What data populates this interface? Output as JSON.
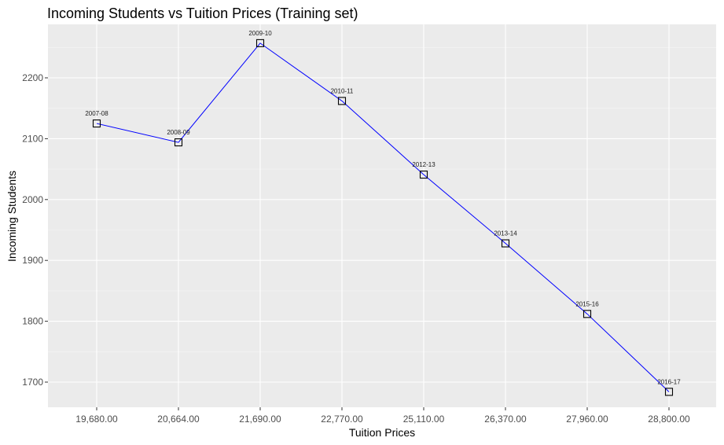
{
  "chart_data": {
    "type": "line",
    "title": "Incoming Students vs Tuition Prices (Training set)",
    "xlabel": "Tuition Prices",
    "ylabel": "Incoming Students",
    "categories": [
      "19,680.00",
      "20,664.00",
      "21,690.00",
      "22,770.00",
      "25,110.00",
      "26,370.00",
      "27,960.00",
      "28,800.00"
    ],
    "x_scale": "discrete",
    "ylim": [
      1650,
      2275
    ],
    "y_ticks": [
      1700,
      1800,
      1900,
      2000,
      2100,
      2200
    ],
    "y_tick_labels": [
      "1700",
      "1800",
      "1900",
      "2000",
      "2100",
      "2200"
    ],
    "grid": true,
    "series": [
      {
        "name": "Incoming Students",
        "line_color": "#0000ff",
        "marker": "open-square",
        "values": [
          2125,
          2094,
          2257,
          2162,
          2041,
          1928,
          1812,
          1684
        ],
        "point_labels": [
          "2007-08",
          "2008-09",
          "2009-10",
          "2010-11",
          "2012-13",
          "2013-14",
          "2015-16",
          "2016-17"
        ]
      }
    ],
    "colors": {
      "panel_background": "#ebebeb",
      "grid_major": "#ffffff",
      "grid_minor": "#f5f5f5",
      "line": "#0000ff",
      "marker": "#000000",
      "tick_mark": "#333333"
    }
  }
}
